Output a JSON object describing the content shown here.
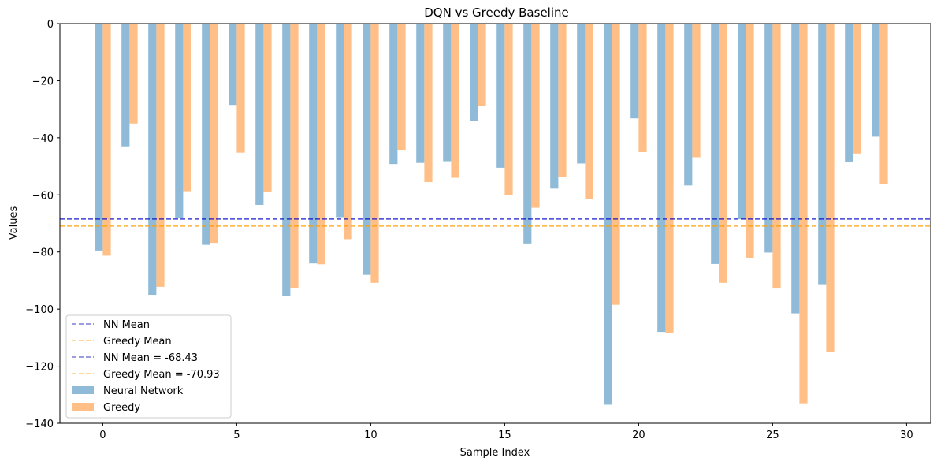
{
  "chart_data": {
    "type": "bar",
    "title": "DQN vs Greedy Baseline",
    "xlabel": "Sample Index",
    "ylabel": "Values",
    "xlim": [
      -1.6,
      30.9
    ],
    "ylim": [
      -140,
      0
    ],
    "xticks": [
      0,
      5,
      10,
      15,
      20,
      25,
      30
    ],
    "yticks": [
      0,
      -20,
      -40,
      -60,
      -80,
      -100,
      -120,
      -140
    ],
    "ytick_labels": [
      "0",
      "−20",
      "−40",
      "−60",
      "−80",
      "−100",
      "−120",
      "−140"
    ],
    "x": [
      0,
      1,
      2,
      3,
      4,
      5,
      6,
      7,
      8,
      9,
      10,
      11,
      12,
      13,
      14,
      15,
      16,
      17,
      18,
      19,
      20,
      21,
      22,
      23,
      24,
      25,
      26,
      27,
      28,
      29
    ],
    "series": [
      {
        "name": "Neural Network",
        "color": "#8fbbd9",
        "values": [
          -79.5,
          -43.0,
          -95.0,
          -68.0,
          -77.5,
          -28.5,
          -63.5,
          -95.3,
          -84.0,
          -67.8,
          -88.0,
          -49.2,
          -48.8,
          -48.2,
          -34.0,
          -50.5,
          -77.0,
          -57.8,
          -49.0,
          -133.5,
          -33.2,
          -108.0,
          -56.7,
          -84.2,
          -68.5,
          -80.2,
          -101.5,
          -91.3,
          -48.5,
          -39.6
        ]
      },
      {
        "name": "Greedy",
        "color": "#ffbf86",
        "values": [
          -81.3,
          -35.0,
          -92.2,
          -58.7,
          -76.8,
          -45.2,
          -58.8,
          -92.5,
          -84.3,
          -75.5,
          -90.8,
          -44.2,
          -55.5,
          -54.0,
          -28.8,
          -60.2,
          -64.5,
          -53.7,
          -61.3,
          -98.5,
          -45.0,
          -108.3,
          -46.8,
          -90.8,
          -82.0,
          -92.8,
          -133.0,
          -115.0,
          -45.5,
          -56.3
        ]
      }
    ],
    "reference_lines": [
      {
        "name": "NN Mean",
        "value": -68.43,
        "color": "#0000cc"
      },
      {
        "name": "Greedy Mean",
        "value": -70.93,
        "color": "#ff9f00"
      }
    ],
    "legend": {
      "position": "lower-left",
      "entries": [
        {
          "label": "NN Mean",
          "kind": "line",
          "color": "#7b7bdc"
        },
        {
          "label": "Greedy Mean",
          "kind": "line",
          "color": "#ffcc6e"
        },
        {
          "label": "NN Mean = -68.43",
          "kind": "line",
          "color": "#7b7bdc"
        },
        {
          "label": "Greedy Mean = -70.93",
          "kind": "line",
          "color": "#ffcc6e"
        },
        {
          "label": "Neural Network",
          "kind": "patch",
          "color": "#8fbbd9"
        },
        {
          "label": "Greedy",
          "kind": "patch",
          "color": "#ffbf86"
        }
      ]
    },
    "grid": false
  }
}
